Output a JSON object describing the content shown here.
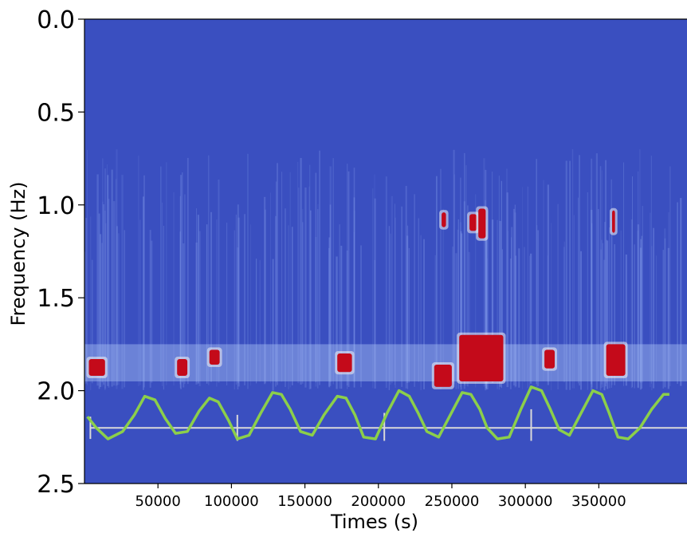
{
  "chart_data": {
    "type": "heatmap",
    "title": "",
    "xlabel": "Times (s)",
    "ylabel": "Frequency (Hz)",
    "xlim": [
      0,
      410000
    ],
    "ylim": [
      2.5,
      0.0
    ],
    "y_ticks": [
      "0.0",
      "0.5",
      "1.0",
      "1.5",
      "2.0",
      "2.5"
    ],
    "y_tick_values": [
      0.0,
      0.5,
      1.0,
      1.5,
      2.0,
      2.5
    ],
    "x_ticks": [
      "50000",
      "100000",
      "150000",
      "200000",
      "250000",
      "300000",
      "350000"
    ],
    "x_tick_values": [
      50000,
      100000,
      150000,
      200000,
      250000,
      300000,
      350000
    ],
    "colormap": {
      "low": "#3a4fc0",
      "mid": "#f2f2f2",
      "high": "#c40a1a"
    },
    "energy_band_hz": [
      1.75,
      1.95
    ],
    "hotspots": [
      {
        "t": [
          3000,
          14000
        ],
        "f": [
          1.83,
          1.92
        ]
      },
      {
        "t": [
          63000,
          70000
        ],
        "f": [
          1.83,
          1.92
        ]
      },
      {
        "t": [
          85000,
          92000
        ],
        "f": [
          1.78,
          1.86
        ]
      },
      {
        "t": [
          172000,
          182000
        ],
        "f": [
          1.8,
          1.9
        ]
      },
      {
        "t": [
          238000,
          250000
        ],
        "f": [
          1.86,
          1.98
        ]
      },
      {
        "t": [
          243000,
          246000
        ],
        "f": [
          1.04,
          1.12
        ]
      },
      {
        "t": [
          255000,
          285000
        ],
        "f": [
          1.7,
          1.95
        ]
      },
      {
        "t": [
          262000,
          267000
        ],
        "f": [
          1.05,
          1.14
        ]
      },
      {
        "t": [
          268000,
          273000
        ],
        "f": [
          1.02,
          1.18
        ]
      },
      {
        "t": [
          313000,
          320000
        ],
        "f": [
          1.78,
          1.88
        ]
      },
      {
        "t": [
          355000,
          368000
        ],
        "f": [
          1.75,
          1.92
        ]
      },
      {
        "t": [
          359000,
          361000
        ],
        "f": [
          1.03,
          1.15
        ]
      }
    ],
    "series": [
      {
        "type": "line",
        "color": "#8ccf4a",
        "x": [
          2000,
          8000,
          16000,
          26000,
          34000,
          41000,
          48000,
          55000,
          62000,
          70000,
          78000,
          85000,
          91000,
          98000,
          104000,
          112000,
          120000,
          128000,
          134000,
          140000,
          147000,
          155000,
          163000,
          172000,
          178000,
          184000,
          190000,
          198000,
          206000,
          214000,
          221000,
          227000,
          233000,
          241000,
          249000,
          257000,
          263000,
          269000,
          274000,
          281000,
          289000,
          297000,
          304000,
          311000,
          317000,
          323000,
          330000,
          338000,
          346000,
          352000,
          357000,
          363000,
          370000,
          378000,
          386000,
          394000,
          398000
        ],
        "y": [
          2.14,
          2.2,
          2.26,
          2.22,
          2.13,
          2.03,
          2.05,
          2.15,
          2.23,
          2.22,
          2.11,
          2.04,
          2.06,
          2.16,
          2.26,
          2.24,
          2.12,
          2.01,
          2.02,
          2.1,
          2.22,
          2.24,
          2.13,
          2.03,
          2.04,
          2.13,
          2.25,
          2.26,
          2.12,
          2.0,
          2.03,
          2.12,
          2.22,
          2.25,
          2.13,
          2.01,
          2.02,
          2.1,
          2.2,
          2.26,
          2.25,
          2.1,
          1.98,
          2.0,
          2.1,
          2.21,
          2.24,
          2.12,
          2.0,
          2.02,
          2.12,
          2.25,
          2.26,
          2.2,
          2.1,
          2.02,
          2.02
        ]
      }
    ],
    "reference_line": {
      "y": 2.2,
      "color": "#d9d9d9",
      "x": [
        4000,
        410000
      ]
    },
    "markers": [
      {
        "x": 4000,
        "y": [
          2.14,
          2.26
        ]
      },
      {
        "x": 104000,
        "y": [
          2.13,
          2.27
        ]
      },
      {
        "x": 204000,
        "y": [
          2.12,
          2.27
        ]
      },
      {
        "x": 304000,
        "y": [
          2.1,
          2.27
        ]
      }
    ]
  }
}
